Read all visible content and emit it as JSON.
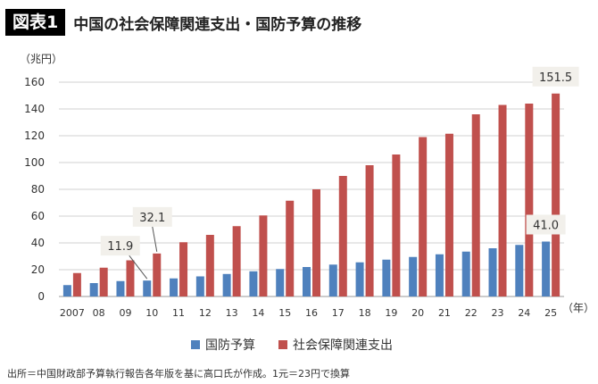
{
  "header": {
    "tag": "図表1",
    "title": "中国の社会保障関連支出・国防予算の推移"
  },
  "colors": {
    "defense": "#4f81bd",
    "social": "#c0504d",
    "grid": "#d0d0d0",
    "label_bg": "#f2f0eb"
  },
  "chart_data": {
    "type": "bar",
    "ylabel": "（兆円）",
    "xlabel": "（年）",
    "ylim": [
      0,
      160
    ],
    "yticks": [
      0,
      20,
      40,
      60,
      80,
      100,
      120,
      140,
      160
    ],
    "grid": true,
    "categories": [
      "2007",
      "08",
      "09",
      "10",
      "11",
      "12",
      "13",
      "14",
      "15",
      "16",
      "17",
      "18",
      "19",
      "20",
      "21",
      "22",
      "23",
      "24",
      "25"
    ],
    "series": [
      {
        "name": "国防予算",
        "color": "#4f81bd",
        "values": [
          8.5,
          10,
          11.5,
          11.9,
          13.5,
          15,
          16.8,
          18.8,
          20.5,
          22,
          23.8,
          25.5,
          27.5,
          29.5,
          31.5,
          33.5,
          36,
          38.5,
          41.0
        ]
      },
      {
        "name": "社会保障関連支出",
        "color": "#c0504d",
        "values": [
          17.5,
          21.5,
          27,
          32.1,
          40.5,
          46,
          52.5,
          60.5,
          71.5,
          80,
          90,
          98,
          106,
          119,
          121.5,
          136,
          143,
          144,
          151.5
        ]
      }
    ],
    "annotations": [
      {
        "series": 0,
        "index": 3,
        "text": "11.9"
      },
      {
        "series": 1,
        "index": 3,
        "text": "32.1"
      },
      {
        "series": 0,
        "index": 18,
        "text": "41.0"
      },
      {
        "series": 1,
        "index": 18,
        "text": "151.5"
      }
    ],
    "legend": [
      "国防予算",
      "社会保障関連支出"
    ]
  },
  "source": "出所＝中国財政部予算執行報告各年版を基に高口氏が作成。1元＝23円で換算"
}
